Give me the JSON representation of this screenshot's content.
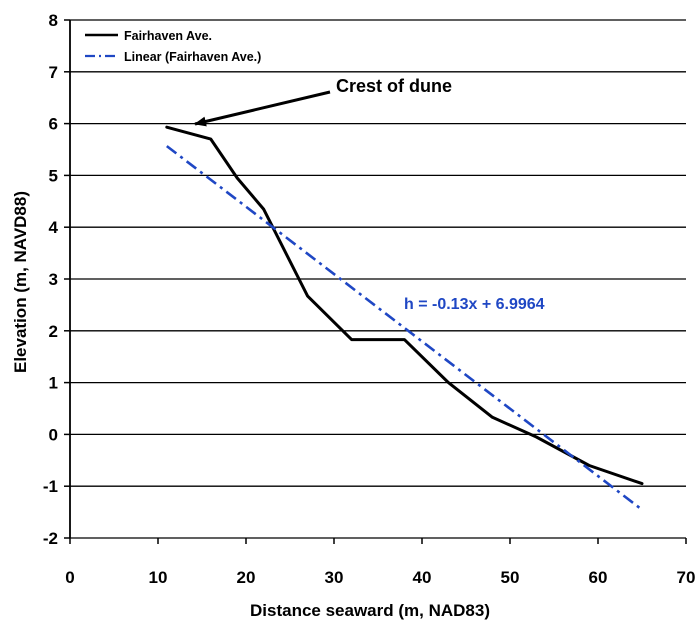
{
  "chart_data": {
    "type": "line",
    "title": "",
    "xlabel": "Distance seaward (m, NAD83)",
    "ylabel": "Elevation (m, NAVD88)",
    "xlim": [
      0,
      70
    ],
    "ylim": [
      -2,
      8
    ],
    "x_ticks": [
      "0",
      "10",
      "20",
      "30",
      "40",
      "50",
      "60",
      "70"
    ],
    "y_ticks": [
      "-2",
      "-1",
      "0",
      "1",
      "2",
      "3",
      "4",
      "5",
      "6",
      "7",
      "8"
    ],
    "x_tick_values": [
      0,
      10,
      20,
      30,
      40,
      50,
      60,
      70
    ],
    "y_tick_values": [
      -2,
      -1,
      0,
      1,
      2,
      3,
      4,
      5,
      6,
      7,
      8
    ],
    "grid": "horizontal",
    "legend_position": "top-left",
    "series": [
      {
        "name": "Fairhaven Ave.",
        "style": "solid",
        "color": "#000000",
        "x": [
          11,
          16,
          19,
          22,
          27,
          32,
          38,
          43,
          48,
          53,
          59,
          65
        ],
        "y": [
          5.93,
          5.7,
          4.95,
          4.35,
          2.67,
          1.83,
          1.83,
          1.0,
          0.33,
          -0.05,
          -0.6,
          -0.95
        ]
      },
      {
        "name": "Linear (Fairhaven Ave.)",
        "style": "dash-dot",
        "color": "#1f47c4",
        "x": [
          11,
          65
        ],
        "y": [
          5.5664,
          -1.4536
        ]
      }
    ],
    "annotations": [
      {
        "text": "Crest of dune",
        "points_to": {
          "x": 11.5,
          "y": 5.93
        }
      },
      {
        "text": "h = -0.13x + 6.9964",
        "color": "#1f47c4"
      }
    ]
  }
}
